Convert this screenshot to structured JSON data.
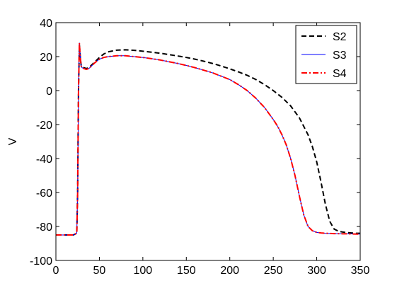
{
  "chart_data": {
    "type": "line",
    "title": "",
    "xlabel": "",
    "ylabel": "V",
    "xlim": [
      0,
      350
    ],
    "ylim": [
      -100,
      40
    ],
    "xticks": [
      0,
      50,
      100,
      150,
      200,
      250,
      300,
      350
    ],
    "yticks": [
      -100,
      -80,
      -60,
      -40,
      -20,
      0,
      20,
      40
    ],
    "grid": false,
    "legend_position": "top-right",
    "series": [
      {
        "name": "S2",
        "color": "#000000",
        "style": "dashed",
        "x": [
          0,
          20,
          24,
          25,
          26,
          27,
          28,
          29,
          30,
          32,
          35,
          38,
          40,
          45,
          50,
          55,
          60,
          70,
          80,
          90,
          100,
          110,
          120,
          130,
          140,
          150,
          160,
          170,
          180,
          190,
          200,
          210,
          220,
          230,
          240,
          250,
          260,
          270,
          280,
          290,
          295,
          300,
          305,
          310,
          315,
          320,
          325,
          330,
          335,
          340,
          345,
          350
        ],
        "y": [
          -85,
          -85,
          -84,
          -60,
          0,
          27,
          20,
          15,
          14,
          13.5,
          13,
          13.5,
          14.5,
          17,
          19.5,
          21.5,
          22.8,
          23.8,
          24,
          23.7,
          23.2,
          22.6,
          22,
          21.2,
          20.4,
          19.5,
          18.5,
          17.3,
          16,
          14.5,
          12.8,
          11,
          9,
          6.5,
          3.5,
          0,
          -4,
          -9,
          -16,
          -26,
          -33,
          -42,
          -54,
          -67,
          -77,
          -81.5,
          -82.8,
          -83.3,
          -83.6,
          -83.8,
          -84,
          -84
        ]
      },
      {
        "name": "S3",
        "color": "#0000ff",
        "style": "solid",
        "x": [
          0,
          20,
          24,
          25,
          26,
          27,
          28,
          29,
          30,
          32,
          35,
          38,
          40,
          45,
          50,
          55,
          60,
          70,
          80,
          90,
          100,
          110,
          120,
          130,
          140,
          150,
          160,
          170,
          180,
          190,
          200,
          210,
          220,
          230,
          240,
          250,
          255,
          260,
          265,
          270,
          275,
          280,
          285,
          290,
          295,
          300,
          305,
          310,
          320,
          330,
          340,
          350
        ],
        "y": [
          -85,
          -85,
          -84,
          -60,
          0,
          28,
          20,
          14.5,
          13.5,
          13,
          12.5,
          13,
          14,
          16.5,
          18.5,
          19.5,
          20,
          20.5,
          20.5,
          20,
          19.5,
          18.8,
          18,
          17,
          16,
          14.8,
          13.5,
          12,
          10.5,
          8.5,
          6.5,
          3.5,
          0,
          -4.5,
          -10,
          -17,
          -21,
          -26,
          -32,
          -40,
          -50,
          -62,
          -73,
          -80,
          -82.5,
          -83.5,
          -83.8,
          -84,
          -84.2,
          -84.3,
          -84.4,
          -84.5
        ]
      },
      {
        "name": "S4",
        "color": "#ff0000",
        "style": "dashdot",
        "x": [
          0,
          20,
          24,
          25,
          26,
          27,
          28,
          29,
          30,
          32,
          35,
          38,
          40,
          45,
          50,
          55,
          60,
          70,
          80,
          90,
          100,
          110,
          120,
          130,
          140,
          150,
          160,
          170,
          180,
          190,
          200,
          210,
          220,
          230,
          240,
          250,
          255,
          260,
          265,
          270,
          275,
          280,
          285,
          290,
          295,
          300,
          305,
          310,
          320,
          330,
          340,
          350
        ],
        "y": [
          -85,
          -85,
          -84,
          -60,
          0,
          28,
          20,
          14.5,
          13.5,
          13,
          12.5,
          13,
          14,
          16.5,
          18.5,
          19.5,
          20,
          20.5,
          20.5,
          20,
          19.5,
          18.8,
          18,
          17,
          16,
          14.8,
          13.5,
          12,
          10.5,
          8.5,
          6.5,
          3.5,
          0,
          -4.5,
          -10,
          -17,
          -21,
          -26,
          -32,
          -40,
          -50,
          -62,
          -73,
          -80,
          -82.5,
          -83.5,
          -83.8,
          -84,
          -84.2,
          -84.3,
          -84.4,
          -84.5
        ]
      }
    ]
  }
}
